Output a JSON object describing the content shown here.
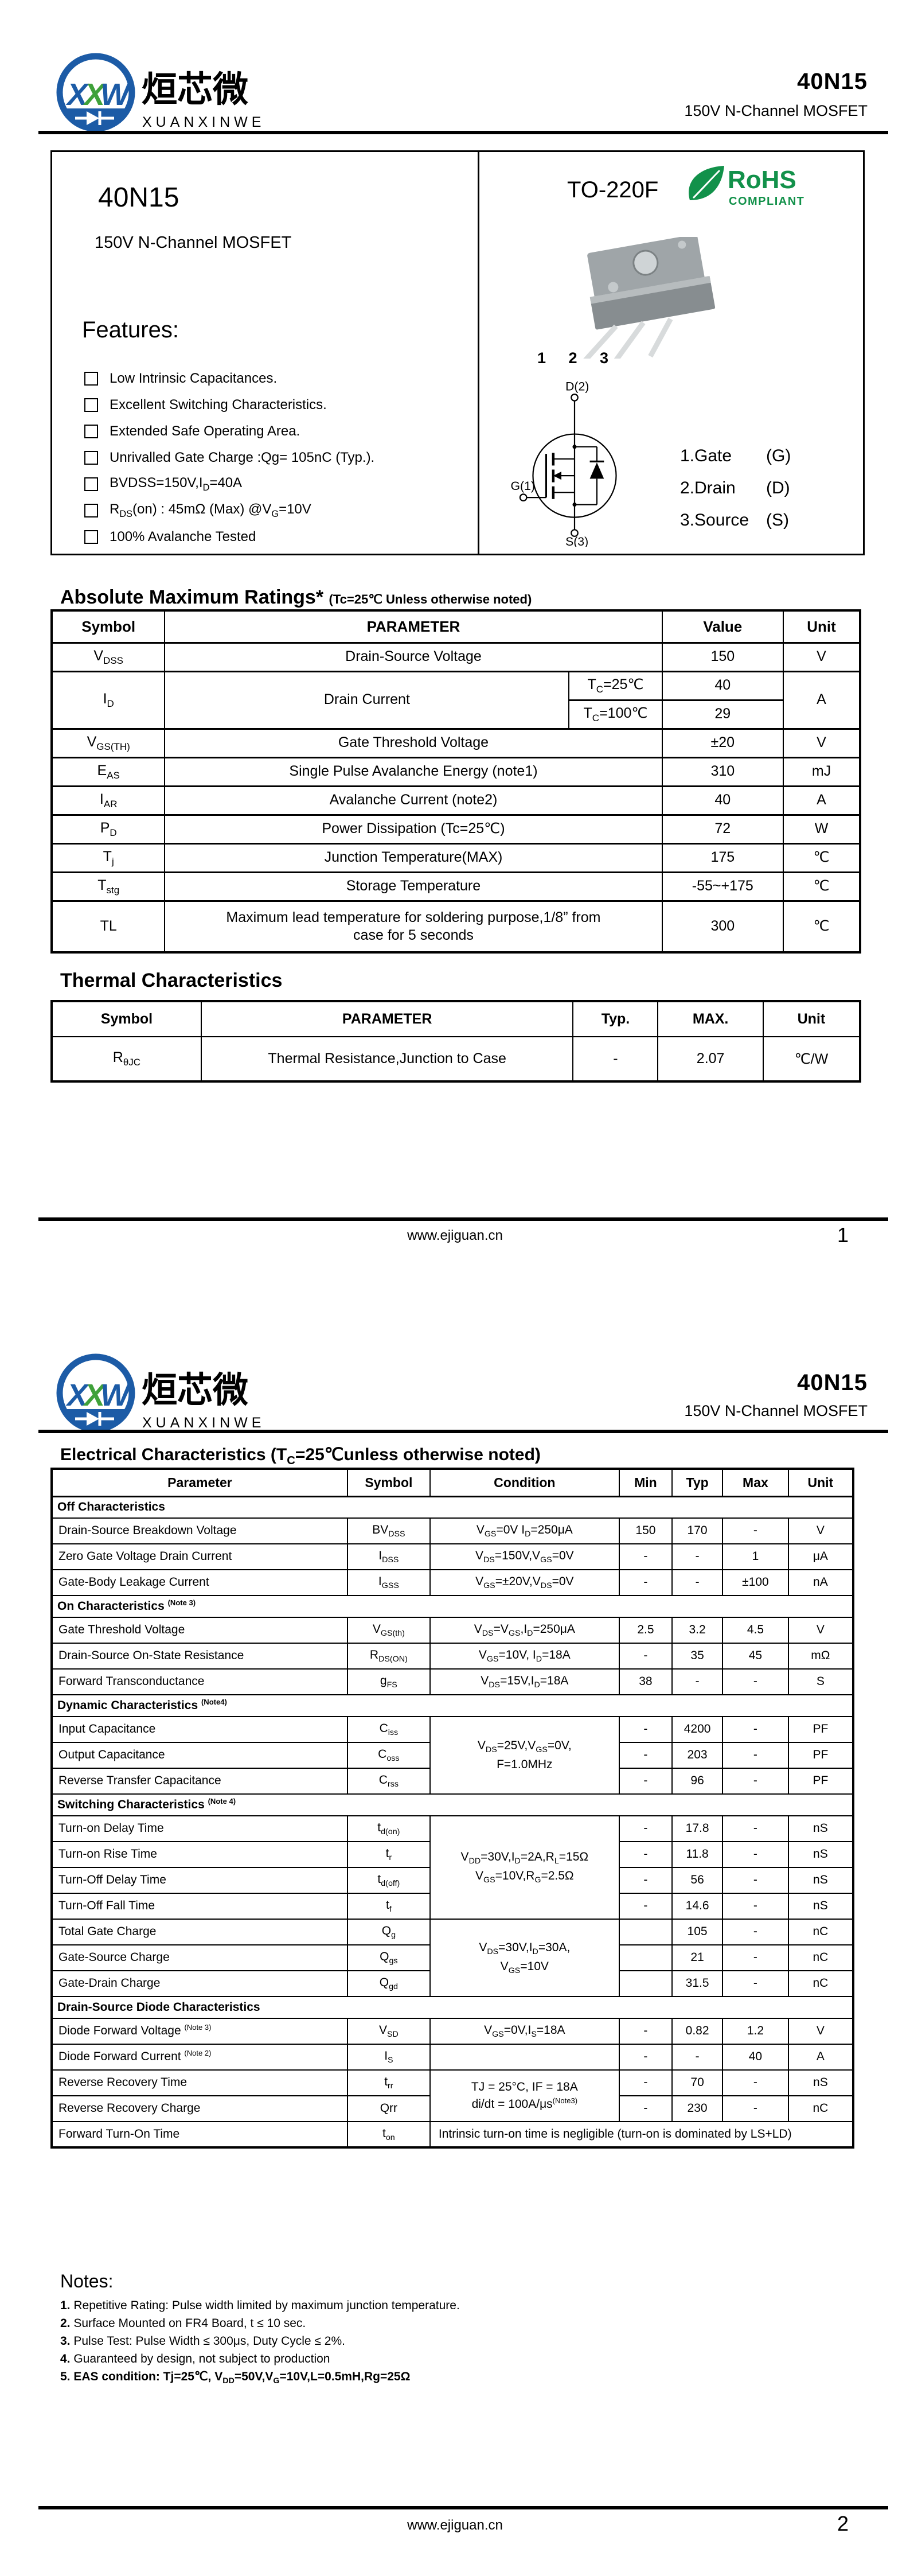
{
  "brand": {
    "cn": "烜芯微",
    "en": "XUANXINWEI",
    "part": "40N15",
    "subtitle": "150V N-Channel MOSFET"
  },
  "footer": {
    "url": "www.ejiguan.cn",
    "page1": "1",
    "page2": "2"
  },
  "page1": {
    "product": {
      "part": "40N15",
      "subtitle": "150V N-Channel MOSFET",
      "features_title": "Features:",
      "features": [
        "Low Intrinsic Capacitances.",
        "Excellent Switching Characteristics.",
        "Extended Safe Operating Area.",
        "Unrivalled Gate Charge :Qg= 105nC (Typ.).",
        "BVDSS=150V,I_{D}=40A",
        "R_{DS}(on) : 45mΩ (Max) @V_{G}=10V",
        "100% Avalanche Tested"
      ]
    },
    "package": {
      "name": "TO-220F",
      "rohs": "RoHS",
      "rohs_sub": "COMPLIANT",
      "pin_numbers": "1 2 3",
      "schematic": {
        "drain": "D(2)",
        "gate": "G(1)",
        "source": "S(3)"
      },
      "pins": [
        {
          "t": "1.Gate",
          "s": "(G)"
        },
        {
          "t": "2.Drain",
          "s": "(D)"
        },
        {
          "t": "3.Source",
          "s": "(S)"
        }
      ]
    },
    "abs_max": {
      "title": "Absolute Maximum Ratings*",
      "title_note": "(Tc=25℃ Unless otherwise noted)",
      "headers": [
        {
          "t": "Symbol"
        },
        {
          "t": "PARAMETER",
          "cs": 2
        },
        {
          "t": "Value"
        },
        {
          "t": "Unit"
        }
      ],
      "rows": [
        {
          "cells": [
            {
              "t": "V_{DSS}"
            },
            {
              "t": "Drain-Source Voltage",
              "cs": 2
            },
            {
              "t": "150"
            },
            {
              "t": "V"
            }
          ]
        },
        {
          "cells": [
            {
              "t": "I_{D}",
              "rs": 2
            },
            {
              "t": "Drain Current",
              "rs": 2
            },
            {
              "t": "T_{C}=25℃"
            },
            {
              "t": "40"
            },
            {
              "t": "A",
              "rs": 2
            }
          ]
        },
        {
          "cells": [
            {
              "t": "T_{C}=100℃"
            },
            {
              "t": "29"
            }
          ]
        },
        {
          "cells": [
            {
              "t": "V_{GS(TH)}"
            },
            {
              "t": "Gate Threshold Voltage",
              "cs": 2
            },
            {
              "t": "±20"
            },
            {
              "t": "V"
            }
          ]
        },
        {
          "cells": [
            {
              "t": "E_{AS}"
            },
            {
              "t": "Single Pulse Avalanche Energy (note1)",
              "cs": 2
            },
            {
              "t": "310"
            },
            {
              "t": "mJ"
            }
          ]
        },
        {
          "cells": [
            {
              "t": "I_{AR}"
            },
            {
              "t": "Avalanche Current (note2)",
              "cs": 2
            },
            {
              "t": "40"
            },
            {
              "t": "A"
            }
          ]
        },
        {
          "cells": [
            {
              "t": "P_{D}"
            },
            {
              "t": "Power Dissipation (Tc=25℃)",
              "cs": 2
            },
            {
              "t": "72"
            },
            {
              "t": "W"
            }
          ]
        },
        {
          "cells": [
            {
              "t": "T_{j}"
            },
            {
              "t": "Junction Temperature(MAX)",
              "cs": 2
            },
            {
              "t": "175"
            },
            {
              "t": "℃"
            }
          ]
        },
        {
          "cells": [
            {
              "t": "T_{stg}"
            },
            {
              "t": "Storage Temperature",
              "cs": 2
            },
            {
              "t": "-55~+175"
            },
            {
              "t": "℃"
            }
          ]
        },
        {
          "cls": "tall",
          "cells": [
            {
              "t": "TL"
            },
            {
              "t": "Maximum lead temperature for soldering purpose,1/8” from\ncase for 5 seconds",
              "cs": 2
            },
            {
              "t": "300"
            },
            {
              "t": "℃"
            }
          ]
        }
      ]
    },
    "thermal": {
      "title": "Thermal Characteristics",
      "headers": [
        {
          "t": "Symbol"
        },
        {
          "t": "PARAMETER"
        },
        {
          "t": "Typ."
        },
        {
          "t": "MAX."
        },
        {
          "t": "Unit"
        }
      ],
      "rows": [
        {
          "cells": [
            {
              "t": "R_{θJC}"
            },
            {
              "t": "Thermal Resistance,Junction to Case"
            },
            {
              "t": "-"
            },
            {
              "t": "2.07"
            },
            {
              "t": "℃/W"
            }
          ]
        }
      ]
    }
  },
  "page2": {
    "elec": {
      "title": "Electrical Characteristics (T_{C}=25℃unless otherwise noted)",
      "headers": [
        {
          "t": "Parameter"
        },
        {
          "t": "Symbol"
        },
        {
          "t": "Condition"
        },
        {
          "t": "Min"
        },
        {
          "t": "Typ"
        },
        {
          "t": "Max"
        },
        {
          "t": "Unit"
        }
      ],
      "rows": [
        {
          "section": "Off Characteristics"
        },
        {
          "cells": [
            {
              "t": "Drain-Source Breakdown Voltage"
            },
            {
              "t": "BV_{DSS}"
            },
            {
              "t": "V_{GS}=0V I_{D}=250μA"
            },
            {
              "t": "150"
            },
            {
              "t": "170"
            },
            {
              "t": "-"
            },
            {
              "t": "V"
            }
          ]
        },
        {
          "cells": [
            {
              "t": "Zero Gate Voltage Drain Current"
            },
            {
              "t": "I_{DSS}"
            },
            {
              "t": "V_{DS}=150V,V_{GS}=0V"
            },
            {
              "t": "-"
            },
            {
              "t": "-"
            },
            {
              "t": "1"
            },
            {
              "t": "μA"
            }
          ]
        },
        {
          "cells": [
            {
              "t": "Gate-Body Leakage Current"
            },
            {
              "t": "I_{GSS}"
            },
            {
              "t": "V_{GS}=±20V,V_{DS}=0V"
            },
            {
              "t": "-"
            },
            {
              "t": "-"
            },
            {
              "t": "±100"
            },
            {
              "t": "nA"
            }
          ]
        },
        {
          "section": "On Characteristics ^{(Note 3)}"
        },
        {
          "cells": [
            {
              "t": "Gate Threshold Voltage"
            },
            {
              "t": "V_{GS(th)}"
            },
            {
              "t": "V_{DS}=V_{GS},I_{D}=250μA"
            },
            {
              "t": "2.5"
            },
            {
              "t": "3.2"
            },
            {
              "t": "4.5"
            },
            {
              "t": "V"
            }
          ]
        },
        {
          "cells": [
            {
              "t": "Drain-Source On-State Resistance"
            },
            {
              "t": "R_{DS(ON)}"
            },
            {
              "t": "V_{GS}=10V, I_{D}=18A"
            },
            {
              "t": "-"
            },
            {
              "t": "35"
            },
            {
              "t": "45"
            },
            {
              "t": "mΩ"
            }
          ]
        },
        {
          "cells": [
            {
              "t": "Forward Transconductance"
            },
            {
              "t": "g_{FS}"
            },
            {
              "t": "V_{DS}=15V,I_{D}=18A"
            },
            {
              "t": "38"
            },
            {
              "t": "-"
            },
            {
              "t": "-"
            },
            {
              "t": "S"
            }
          ]
        },
        {
          "section": "Dynamic Characteristics ^{(Note4)}"
        },
        {
          "cells": [
            {
              "t": "Input Capacitance"
            },
            {
              "t": "C_{iss}"
            },
            {
              "t": "V_{DS}=25V,V_{GS}=0V,\nF=1.0MHz",
              "rs": 3
            },
            {
              "t": "-"
            },
            {
              "t": "4200"
            },
            {
              "t": "-"
            },
            {
              "t": "PF"
            }
          ]
        },
        {
          "cells": [
            {
              "t": "Output Capacitance"
            },
            {
              "t": "C_{oss}"
            },
            {
              "t": "-"
            },
            {
              "t": "203"
            },
            {
              "t": "-"
            },
            {
              "t": "PF"
            }
          ]
        },
        {
          "cells": [
            {
              "t": "Reverse Transfer Capacitance"
            },
            {
              "t": "C_{rss}"
            },
            {
              "t": "-"
            },
            {
              "t": "96"
            },
            {
              "t": "-"
            },
            {
              "t": "PF"
            }
          ]
        },
        {
          "section": "Switching Characteristics ^{(Note 4)}"
        },
        {
          "cells": [
            {
              "t": "Turn-on Delay Time"
            },
            {
              "t": "t_{d(on)}"
            },
            {
              "t": "V_{DD}=30V,I_{D}=2A,R_{L}=15Ω\nV_{GS}=10V,R_{G}=2.5Ω",
              "rs": 4
            },
            {
              "t": "-"
            },
            {
              "t": "17.8"
            },
            {
              "t": "-"
            },
            {
              "t": "nS"
            }
          ]
        },
        {
          "cells": [
            {
              "t": "Turn-on Rise Time"
            },
            {
              "t": "t_{r}"
            },
            {
              "t": "-"
            },
            {
              "t": "11.8"
            },
            {
              "t": "-"
            },
            {
              "t": "nS"
            }
          ]
        },
        {
          "cells": [
            {
              "t": "Turn-Off Delay Time"
            },
            {
              "t": "t_{d(off)}"
            },
            {
              "t": "-"
            },
            {
              "t": "56"
            },
            {
              "t": "-"
            },
            {
              "t": "nS"
            }
          ]
        },
        {
          "cells": [
            {
              "t": "Turn-Off Fall Time"
            },
            {
              "t": "t_{f}"
            },
            {
              "t": "-"
            },
            {
              "t": "14.6"
            },
            {
              "t": "-"
            },
            {
              "t": "nS"
            }
          ]
        },
        {
          "cells": [
            {
              "t": "Total Gate Charge"
            },
            {
              "t": "Q_{g}"
            },
            {
              "t": "V_{DS}=30V,I_{D}=30A,\nV_{GS}=10V",
              "rs": 3
            },
            {
              "t": ""
            },
            {
              "t": "105"
            },
            {
              "t": "-"
            },
            {
              "t": "nC"
            }
          ]
        },
        {
          "cells": [
            {
              "t": "Gate-Source Charge"
            },
            {
              "t": "Q_{gs}"
            },
            {
              "t": ""
            },
            {
              "t": "21"
            },
            {
              "t": "-"
            },
            {
              "t": "nC"
            }
          ]
        },
        {
          "cells": [
            {
              "t": "Gate-Drain Charge"
            },
            {
              "t": "Q_{gd}"
            },
            {
              "t": ""
            },
            {
              "t": "31.5"
            },
            {
              "t": "-"
            },
            {
              "t": "nC"
            }
          ]
        },
        {
          "section": "Drain-Source Diode Characteristics"
        },
        {
          "cells": [
            {
              "t": "Diode Forward Voltage ^{(Note 3)}"
            },
            {
              "t": "V_{SD}"
            },
            {
              "t": "V_{GS}=0V,I_{S}=18A"
            },
            {
              "t": "-"
            },
            {
              "t": "0.82"
            },
            {
              "t": "1.2"
            },
            {
              "t": "V"
            }
          ]
        },
        {
          "cells": [
            {
              "t": "Diode Forward Current ^{(Note 2)}"
            },
            {
              "t": "I_{S}"
            },
            {
              "t": ""
            },
            {
              "t": "-"
            },
            {
              "t": "-"
            },
            {
              "t": "40"
            },
            {
              "t": "A"
            }
          ]
        },
        {
          "cells": [
            {
              "t": "Reverse Recovery Time"
            },
            {
              "t": "t_{rr}"
            },
            {
              "t": "TJ = 25°C, IF = 18A\ndi/dt = 100A/μs^{(Note3)}",
              "rs": 2
            },
            {
              "t": "-"
            },
            {
              "t": "70"
            },
            {
              "t": "-"
            },
            {
              "t": "nS"
            }
          ]
        },
        {
          "cells": [
            {
              "t": "Reverse Recovery Charge"
            },
            {
              "t": "Qrr"
            },
            {
              "t": "-"
            },
            {
              "t": "230"
            },
            {
              "t": "-"
            },
            {
              "t": "nC"
            }
          ]
        },
        {
          "cells": [
            {
              "t": "Forward Turn-On Time"
            },
            {
              "t": "t_{on}"
            },
            {
              "t": "Intrinsic turn-on time is negligible (turn-on is dominated by LS+LD)",
              "cs": 5,
              "cls": "left"
            }
          ]
        }
      ]
    },
    "notes": {
      "title": "Notes:",
      "items": [
        {
          "n": "1.",
          "t": "Repetitive Rating: Pulse width limited by maximum junction temperature."
        },
        {
          "n": "2.",
          "t": "Surface Mounted on FR4 Board, t ≤ 10 sec."
        },
        {
          "n": "3.",
          "t": "Pulse Test: Pulse Width ≤ 300μs, Duty Cycle ≤ 2%."
        },
        {
          "n": "4.",
          "t": "Guaranteed by design, not subject to production"
        },
        {
          "n": "5.",
          "t": "EAS condition: Tj=25℃, V_{DD}=50V,V_{G}=10V,L=0.5mH,Rg=25Ω",
          "bold": true
        }
      ]
    }
  },
  "colors": {
    "logo_blue": "#1c5ba6",
    "logo_green": "#3fa13a",
    "rohs_green": "#12914a",
    "text": "#000000"
  }
}
